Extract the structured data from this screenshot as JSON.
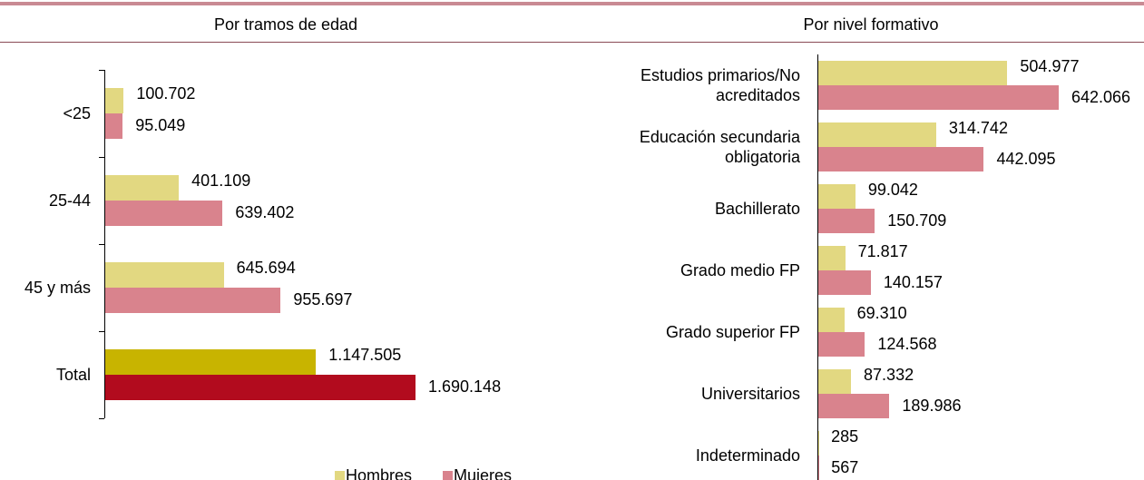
{
  "chart_data": [
    {
      "type": "bar",
      "orientation": "horizontal",
      "title": "Por tramos de edad",
      "categories": [
        "<25",
        "25-44",
        "45 y más",
        "Total"
      ],
      "series": [
        {
          "name": "Hombres",
          "color": "#e2d881",
          "colors": [
            "#e2d881",
            "#e2d881",
            "#e2d881",
            "#c8b400"
          ],
          "values": [
            100702,
            401109,
            645694,
            1147505
          ],
          "value_labels": [
            "100.702",
            "401.109",
            "645.694",
            "1.147.505"
          ]
        },
        {
          "name": "Mujeres",
          "color": "#d9838d",
          "colors": [
            "#d9838d",
            "#d9838d",
            "#d9838d",
            "#b20b1e"
          ],
          "values": [
            95049,
            639402,
            955697,
            1690148
          ],
          "value_labels": [
            "95.049",
            "639.402",
            "955.697",
            "1.690.148"
          ]
        }
      ],
      "legend": "bottom"
    },
    {
      "type": "bar",
      "orientation": "horizontal",
      "title": "Por nivel formativo",
      "categories": [
        "Estudios primarios/No acreditados",
        "Educación secundaria obligatoria",
        "Bachillerato",
        "Grado medio FP",
        "Grado superior FP",
        "Universitarios",
        "Indeterminado"
      ],
      "series": [
        {
          "color": "#e2d881",
          "values": [
            504977,
            314742,
            99042,
            71817,
            69310,
            87332,
            285
          ],
          "value_labels": [
            "504.977",
            "314.742",
            "99.042",
            "71.817",
            "69.310",
            "87.332",
            "285"
          ]
        },
        {
          "color": "#d9838d",
          "values": [
            642066,
            442095,
            150709,
            140157,
            124568,
            189986,
            567
          ],
          "value_labels": [
            "642.066",
            "442.095",
            "150.709",
            "140.157",
            "124.568",
            "189.986",
            "567"
          ]
        }
      ]
    }
  ]
}
